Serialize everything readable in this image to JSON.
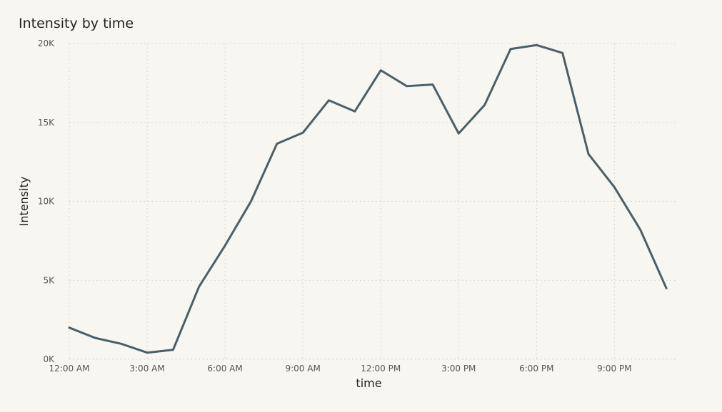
{
  "chart_data": {
    "type": "line",
    "title": "Intensity by time",
    "xlabel": "time",
    "ylabel": "Intensity",
    "x": [
      "12:00 AM",
      "1:00 AM",
      "2:00 AM",
      "3:00 AM",
      "4:00 AM",
      "5:00 AM",
      "6:00 AM",
      "7:00 AM",
      "8:00 AM",
      "9:00 AM",
      "10:00 AM",
      "11:00 AM",
      "12:00 PM",
      "1:00 PM",
      "2:00 PM",
      "3:00 PM",
      "4:00 PM",
      "5:00 PM",
      "6:00 PM",
      "7:00 PM",
      "8:00 PM",
      "9:00 PM",
      "10:00 PM",
      "11:00 PM"
    ],
    "series": [
      {
        "values": [
          2000,
          1350,
          980,
          420,
          600,
          4600,
          7200,
          10000,
          13650,
          14350,
          16400,
          15700,
          18300,
          17300,
          17400,
          14300,
          16100,
          19650,
          19900,
          19400,
          13000,
          10900,
          8200,
          4500
        ]
      }
    ],
    "ylim": [
      0,
      20000
    ],
    "yticks": [
      {
        "value": 0,
        "label": "0K"
      },
      {
        "value": 5000,
        "label": "5K"
      },
      {
        "value": 10000,
        "label": "10K"
      },
      {
        "value": 15000,
        "label": "15K"
      },
      {
        "value": 20000,
        "label": "20K"
      }
    ],
    "xticks": [
      {
        "index": 0,
        "label": "12:00 AM"
      },
      {
        "index": 3,
        "label": "3:00 AM"
      },
      {
        "index": 6,
        "label": "6:00 AM"
      },
      {
        "index": 9,
        "label": "9:00 AM"
      },
      {
        "index": 12,
        "label": "12:00 PM"
      },
      {
        "index": 15,
        "label": "3:00 PM"
      },
      {
        "index": 18,
        "label": "6:00 PM"
      },
      {
        "index": 21,
        "label": "9:00 PM"
      }
    ],
    "grid": true,
    "line_color": "#4a5f68"
  }
}
